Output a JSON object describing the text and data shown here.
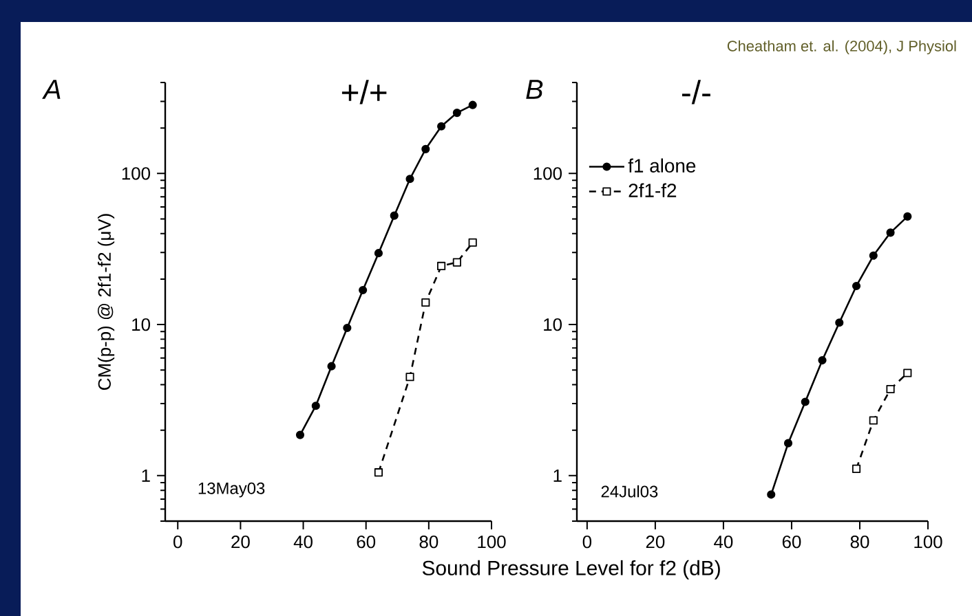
{
  "chart_data": [
    {
      "type": "line",
      "title": "+/+",
      "ylabel": "CM(p-p) @ 2f1-f2 (μV)",
      "xlabel": "Sound Pressure Level for f2 (dB)",
      "annotations": [
        "A",
        "13May03"
      ],
      "log": "y",
      "xlim": [
        -4,
        100
      ],
      "xticks": [
        0,
        20,
        40,
        60,
        80,
        100
      ],
      "ylim": [
        0.5,
        400
      ],
      "yticks": [
        {
          "value": 0.5,
          "label": null
        },
        {
          "value": 0.6,
          "label": null
        },
        {
          "value": 0.7,
          "label": null
        },
        {
          "value": 0.8,
          "label": null
        },
        {
          "value": 0.9,
          "label": null
        },
        1,
        {
          "value": 2,
          "label": null
        },
        {
          "value": 3,
          "label": null
        },
        {
          "value": 4,
          "label": null
        },
        {
          "value": 5,
          "label": null
        },
        {
          "value": 6,
          "label": null
        },
        {
          "value": 7,
          "label": null
        },
        {
          "value": 8,
          "label": null
        },
        {
          "value": 9,
          "label": null
        },
        10,
        {
          "value": 20,
          "label": null
        },
        {
          "value": 30,
          "label": null
        },
        {
          "value": 40,
          "label": null
        },
        {
          "value": 50,
          "label": null
        },
        {
          "value": 60,
          "label": null
        },
        {
          "value": 70,
          "label": null
        },
        {
          "value": 80,
          "label": null
        },
        {
          "value": 90,
          "label": null
        },
        100,
        {
          "value": 200,
          "label": null
        },
        {
          "value": 300,
          "label": null
        },
        {
          "value": 400,
          "label": null
        }
      ],
      "series": [
        {
          "color": "#000000",
          "marker": "circle",
          "line_style": "solid",
          "x": [
            39,
            44,
            49,
            54,
            59,
            64,
            69,
            74,
            79,
            84,
            89,
            94
          ],
          "values": [
            1.86,
            2.9,
            5.3,
            9.5,
            16.9,
            29.7,
            52.6,
            92,
            145,
            205,
            252,
            284
          ]
        },
        {
          "color": "#000000",
          "marker": "square",
          "line_style": "dashed",
          "x": [
            64,
            74,
            79,
            84,
            89,
            94
          ],
          "values": [
            1.05,
            4.5,
            14,
            24.4,
            25.8,
            34.9
          ]
        }
      ]
    },
    {
      "type": "line",
      "title": "-/-",
      "annotations": [
        "B",
        "24Jul03",
        "Cheatham et. al. (2004), J Physiol"
      ],
      "log": "y",
      "legend": "top left",
      "xlim": [
        -3,
        100
      ],
      "xticks": [
        0,
        20,
        40,
        60,
        80,
        100
      ],
      "ylim": [
        0.5,
        400
      ],
      "yticks": [
        {
          "value": 0.5,
          "label": null
        },
        {
          "value": 0.6,
          "label": null
        },
        {
          "value": 0.7,
          "label": null
        },
        {
          "value": 0.8,
          "label": null
        },
        {
          "value": 0.9,
          "label": null
        },
        1,
        {
          "value": 2,
          "label": null
        },
        {
          "value": 3,
          "label": null
        },
        {
          "value": 4,
          "label": null
        },
        {
          "value": 5,
          "label": null
        },
        {
          "value": 6,
          "label": null
        },
        {
          "value": 7,
          "label": null
        },
        {
          "value": 8,
          "label": null
        },
        {
          "value": 9,
          "label": null
        },
        10,
        {
          "value": 20,
          "label": null
        },
        {
          "value": 30,
          "label": null
        },
        {
          "value": 40,
          "label": null
        },
        {
          "value": 50,
          "label": null
        },
        {
          "value": 60,
          "label": null
        },
        {
          "value": 70,
          "label": null
        },
        {
          "value": 80,
          "label": null
        },
        {
          "value": 90,
          "label": null
        },
        100,
        {
          "value": 200,
          "label": null
        },
        {
          "value": 300,
          "label": null
        },
        {
          "value": 400,
          "label": null
        }
      ],
      "series": [
        {
          "name": "f1 alone",
          "color": "#000000",
          "marker": "circle",
          "line_style": "solid",
          "x": [
            54,
            59,
            64,
            69,
            74,
            79,
            84,
            89,
            94
          ],
          "values": [
            0.75,
            1.64,
            3.08,
            5.8,
            10.3,
            18,
            28.6,
            40.6,
            51.9
          ]
        },
        {
          "name": "2f1-f2",
          "color": "#000000",
          "marker": "square",
          "line_style": "dashed",
          "x": [
            79,
            84,
            89,
            94
          ],
          "values": [
            1.11,
            2.32,
            3.74,
            4.78
          ]
        }
      ]
    }
  ]
}
